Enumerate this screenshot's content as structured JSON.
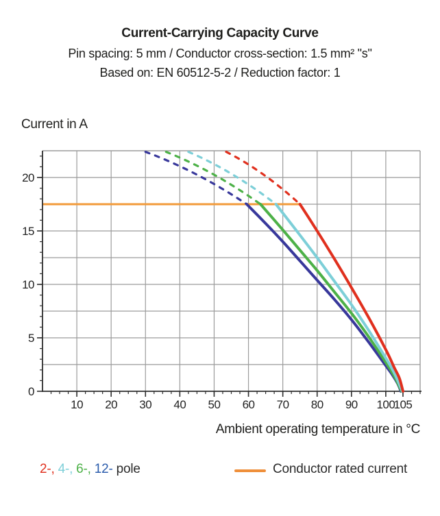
{
  "header": {
    "title": "Current-Carrying Capacity Curve",
    "subtitle1": "Pin spacing: 5 mm / Conductor cross-section: 1.5 mm² \"s\"",
    "subtitle2": "Based on: EN 60512-5-2 / Reduction factor: 1"
  },
  "chart_data": {
    "type": "line",
    "title": "Current-Carrying Capacity Curve",
    "xlabel": "Ambient operating temperature in °C",
    "ylabel": "Current in A",
    "xlim": [
      0,
      110
    ],
    "ylim": [
      0,
      22.5
    ],
    "x_major_ticks": [
      10,
      20,
      30,
      40,
      50,
      60,
      70,
      80,
      90,
      100,
      105
    ],
    "y_major_ticks": [
      0,
      5,
      10,
      15,
      20
    ],
    "x_minor_step": 2.5,
    "y_minor_step": 1,
    "x_grid_step": 10,
    "y_grid_step": 2.5,
    "grid": true,
    "grid_color": "#9B9B9B",
    "axis_color": "#2D2D2D",
    "rated_current": {
      "label": "Conductor rated current",
      "value_A": 17.5,
      "x_start": 0,
      "x_end": 75,
      "color": "#F29B3B"
    },
    "series": [
      {
        "name": "2-pole",
        "color": "#E0301E",
        "dashed": [
          [
            53.5,
            22.4
          ],
          [
            75,
            17.5
          ]
        ],
        "solid": [
          [
            75,
            17.5
          ],
          [
            80,
            15.0
          ],
          [
            85,
            12.4
          ],
          [
            90,
            9.7
          ],
          [
            95,
            6.9
          ],
          [
            100,
            3.9
          ],
          [
            102.5,
            2.2
          ],
          [
            104,
            1.2
          ],
          [
            105,
            0
          ]
        ]
      },
      {
        "name": "4-pole",
        "color": "#7DCFD8",
        "dashed": [
          [
            42.5,
            22.4
          ],
          [
            68,
            17.5
          ]
        ],
        "solid": [
          [
            68,
            17.5
          ],
          [
            75,
            14.6
          ],
          [
            80,
            12.5
          ],
          [
            85,
            10.3
          ],
          [
            90,
            8.1
          ],
          [
            95,
            5.7
          ],
          [
            100,
            3.1
          ],
          [
            102.5,
            1.7
          ],
          [
            104.8,
            0
          ]
        ]
      },
      {
        "name": "6-pole",
        "color": "#4DB148",
        "dashed": [
          [
            36,
            22.4
          ],
          [
            63.5,
            17.5
          ]
        ],
        "solid": [
          [
            63.5,
            17.5
          ],
          [
            70,
            15.1
          ],
          [
            75,
            13.2
          ],
          [
            80,
            11.3
          ],
          [
            85,
            9.3
          ],
          [
            90,
            7.3
          ],
          [
            95,
            5.1
          ],
          [
            100,
            2.7
          ],
          [
            102.5,
            1.4
          ],
          [
            104.6,
            0
          ]
        ]
      },
      {
        "name": "12-pole",
        "color": "#38389B",
        "dashed": [
          [
            30,
            22.4
          ],
          [
            59.5,
            17.5
          ]
        ],
        "solid": [
          [
            59.5,
            17.5
          ],
          [
            65,
            15.7
          ],
          [
            70,
            14.0
          ],
          [
            75,
            12.2
          ],
          [
            80,
            10.4
          ],
          [
            85,
            8.6
          ],
          [
            90,
            6.7
          ],
          [
            95,
            4.6
          ],
          [
            100,
            2.4
          ],
          [
            102,
            1.5
          ],
          [
            103.5,
            0.7
          ],
          [
            104.4,
            0
          ]
        ]
      }
    ]
  },
  "legend": {
    "poles": [
      {
        "text": "2-,",
        "color": "#E0301E"
      },
      {
        "text": "4-,",
        "color": "#7DCFD8"
      },
      {
        "text": "6-,",
        "color": "#4DB148"
      },
      {
        "text": "12-",
        "color": "#2B5CAC"
      }
    ],
    "pole_suffix": "pole",
    "rated": {
      "label": "Conductor rated current",
      "color": "#EF8F3A"
    }
  }
}
